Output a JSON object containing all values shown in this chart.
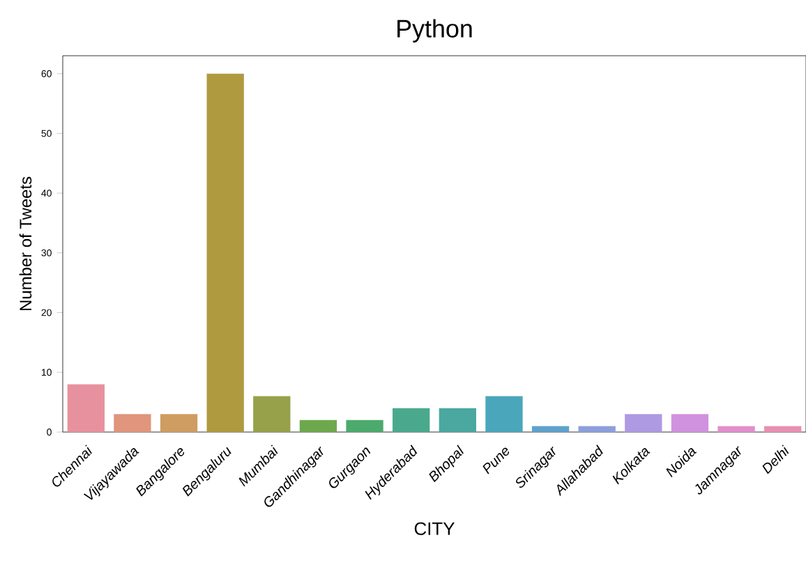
{
  "chart_data": {
    "type": "bar",
    "title": "Python",
    "xlabel": "CITY",
    "ylabel": "Number of Tweets",
    "categories": [
      "Chennai",
      "Vijayawada",
      "Bangalore",
      "Bengaluru",
      "Mumbai",
      "Gandhinagar",
      "Gurgaon",
      "Hyderabad",
      "Bhopal",
      "Pune",
      "Srinagar",
      "Allahabad",
      "Kolkata",
      "Noida",
      "Jamnagar",
      "Delhi"
    ],
    "values": [
      8,
      3,
      3,
      60,
      6,
      2,
      2,
      4,
      4,
      6,
      1,
      1,
      3,
      3,
      1,
      1
    ],
    "colors": [
      "#e8919e",
      "#e0957c",
      "#cf9c62",
      "#b09a40",
      "#96a14a",
      "#6ea84c",
      "#4caa6c",
      "#4aa98c",
      "#4aa8a0",
      "#4aa6ba",
      "#5ea2cc",
      "#8c9fdc",
      "#ae9ae2",
      "#d092de",
      "#e28fcc",
      "#e890b2"
    ],
    "ylim": [
      0,
      63
    ],
    "yticks": [
      0,
      10,
      20,
      30,
      40,
      50,
      60
    ],
    "grid": false
  }
}
